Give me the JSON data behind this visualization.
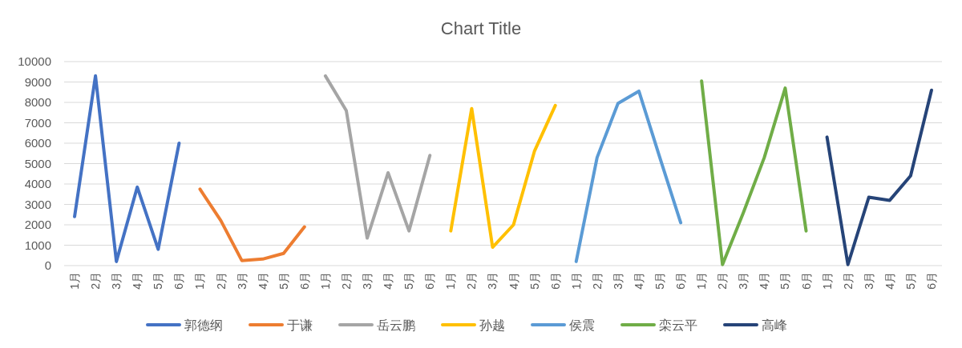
{
  "chart_data": {
    "type": "line",
    "title": "Chart Title",
    "categories": [
      "1月",
      "2月",
      "3月",
      "4月",
      "5月",
      "6月",
      "1月",
      "2月",
      "3月",
      "4月",
      "5月",
      "6月",
      "1月",
      "2月",
      "3月",
      "4月",
      "5月",
      "6月",
      "1月",
      "2月",
      "3月",
      "4月",
      "5月",
      "6月",
      "1月",
      "2月",
      "3月",
      "4月",
      "5月",
      "6月",
      "1月",
      "2月",
      "3月",
      "4月",
      "5月",
      "6月",
      "1月",
      "2月",
      "3月",
      "4月",
      "5月",
      "6月"
    ],
    "series": [
      {
        "name": "郭德纲",
        "color": "#4472c4",
        "values": [
          2400,
          9300,
          200,
          3850,
          800,
          6000,
          null,
          null,
          null,
          null,
          null,
          null,
          null,
          null,
          null,
          null,
          null,
          null,
          null,
          null,
          null,
          null,
          null,
          null,
          null,
          null,
          null,
          null,
          null,
          null,
          null,
          null,
          null,
          null,
          null,
          null,
          null,
          null,
          null,
          null,
          null,
          null
        ]
      },
      {
        "name": "于谦",
        "color": "#ed7d31",
        "values": [
          null,
          null,
          null,
          null,
          null,
          null,
          3750,
          2200,
          250,
          320,
          600,
          1900,
          null,
          null,
          null,
          null,
          null,
          null,
          null,
          null,
          null,
          null,
          null,
          null,
          null,
          null,
          null,
          null,
          null,
          null,
          null,
          null,
          null,
          null,
          null,
          null,
          null,
          null,
          null,
          null,
          null,
          null
        ]
      },
      {
        "name": "岳云鹏",
        "color": "#a5a5a5",
        "values": [
          null,
          null,
          null,
          null,
          null,
          null,
          null,
          null,
          null,
          null,
          null,
          null,
          9300,
          7600,
          1350,
          4550,
          1700,
          5400,
          null,
          null,
          null,
          null,
          null,
          null,
          null,
          null,
          null,
          null,
          null,
          null,
          null,
          null,
          null,
          null,
          null,
          null,
          null,
          null,
          null,
          null,
          null,
          null
        ]
      },
      {
        "name": "孙越",
        "color": "#ffc000",
        "values": [
          null,
          null,
          null,
          null,
          null,
          null,
          null,
          null,
          null,
          null,
          null,
          null,
          null,
          null,
          null,
          null,
          null,
          null,
          1700,
          7700,
          900,
          2000,
          5600,
          7850,
          null,
          null,
          null,
          null,
          null,
          null,
          null,
          null,
          null,
          null,
          null,
          null,
          null,
          null,
          null,
          null,
          null,
          null
        ]
      },
      {
        "name": "侯震",
        "color": "#5b9bd5",
        "values": [
          null,
          null,
          null,
          null,
          null,
          null,
          null,
          null,
          null,
          null,
          null,
          null,
          null,
          null,
          null,
          null,
          null,
          null,
          null,
          null,
          null,
          null,
          null,
          null,
          200,
          5300,
          7950,
          8550,
          5300,
          2100,
          null,
          null,
          null,
          null,
          null,
          null,
          null,
          null,
          null,
          null,
          null,
          null
        ]
      },
      {
        "name": "栾云平",
        "color": "#70ad47",
        "values": [
          null,
          null,
          null,
          null,
          null,
          null,
          null,
          null,
          null,
          null,
          null,
          null,
          null,
          null,
          null,
          null,
          null,
          null,
          null,
          null,
          null,
          null,
          null,
          null,
          null,
          null,
          null,
          null,
          null,
          null,
          9050,
          50,
          2600,
          5300,
          8700,
          1700,
          null,
          null,
          null,
          null,
          null,
          null
        ]
      },
      {
        "name": "高峰",
        "color": "#264478",
        "values": [
          null,
          null,
          null,
          null,
          null,
          null,
          null,
          null,
          null,
          null,
          null,
          null,
          null,
          null,
          null,
          null,
          null,
          null,
          null,
          null,
          null,
          null,
          null,
          null,
          null,
          null,
          null,
          null,
          null,
          null,
          null,
          null,
          null,
          null,
          null,
          null,
          6300,
          50,
          3350,
          3200,
          4400,
          8600
        ]
      }
    ],
    "ylim": [
      0,
      10000
    ],
    "yticks": [
      0,
      1000,
      2000,
      3000,
      4000,
      5000,
      6000,
      7000,
      8000,
      9000,
      10000
    ],
    "grid": "y",
    "legend": "bottom"
  }
}
